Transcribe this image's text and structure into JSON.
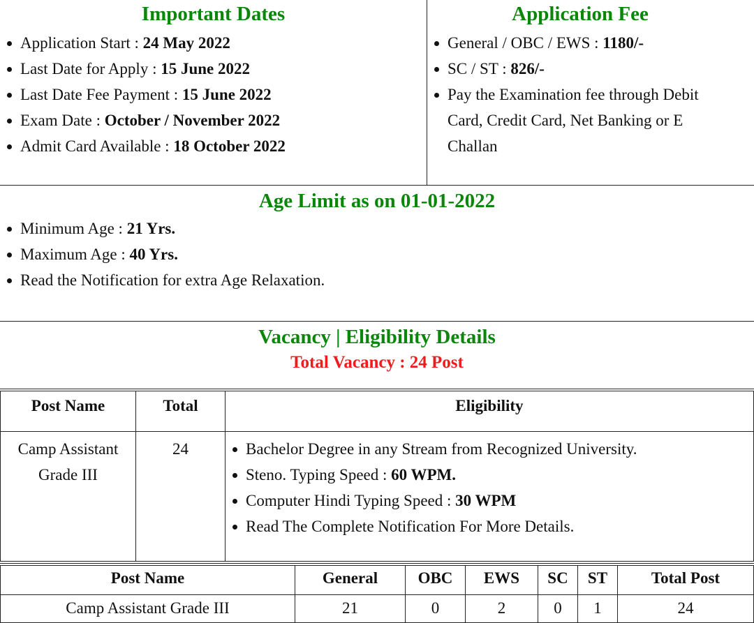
{
  "important_dates": {
    "title": "Important Dates",
    "items": [
      {
        "label": "Application Start : ",
        "value": "24 May 2022"
      },
      {
        "label": "Last Date for Apply : ",
        "value": "15 June 2022"
      },
      {
        "label": "Last Date Fee Payment : ",
        "value": "15 June 2022"
      },
      {
        "label": "Exam Date : ",
        "value": "October / November 2022"
      },
      {
        "label": "Admit Card Available : ",
        "value": "18 October 2022"
      }
    ]
  },
  "application_fee": {
    "title": "Application Fee",
    "items": [
      {
        "label": "General / OBC / EWS : ",
        "value": "1180/-"
      },
      {
        "label": "SC / ST : ",
        "value": "826/-"
      },
      {
        "label": "Pay the Examination fee through Debit Card, Credit Card, Net Banking or E Challan",
        "value": ""
      }
    ]
  },
  "age_limit": {
    "title": "Age Limit as on 01-01-2022",
    "items": [
      {
        "label": "Minimum Age : ",
        "value": "21 Yrs."
      },
      {
        "label": "Maximum Age : ",
        "value": "40 Yrs."
      },
      {
        "label": "Read the Notification for extra Age Relaxation.",
        "value": ""
      }
    ]
  },
  "vacancy": {
    "title": "Vacancy | Eligibility Details",
    "total": "Total Vacancy : 24 Post"
  },
  "table1": {
    "headers": [
      "Post Name",
      "Total",
      "Eligibility"
    ],
    "row": {
      "post": "Camp Assistant Grade III",
      "total": "24",
      "eligibility": [
        {
          "label": "Bachelor Degree in any Stream from Recognized University.",
          "value": ""
        },
        {
          "label": "Steno. Typing Speed : ",
          "value": "60 WPM."
        },
        {
          "label": "Computer Hindi Typing Speed : ",
          "value": "30 WPM"
        },
        {
          "label": "Read The Complete Notification For More Details.",
          "value": ""
        }
      ]
    }
  },
  "table2": {
    "headers": [
      "Post Name",
      "General",
      "OBC",
      "EWS",
      "SC",
      "ST",
      "Total Post"
    ],
    "rows": [
      [
        "Camp Assistant Grade III",
        "21",
        "0",
        "2",
        "0",
        "1",
        "24"
      ]
    ]
  },
  "colors": {
    "heading": "#0a860a",
    "total": "#ee1c1c"
  }
}
